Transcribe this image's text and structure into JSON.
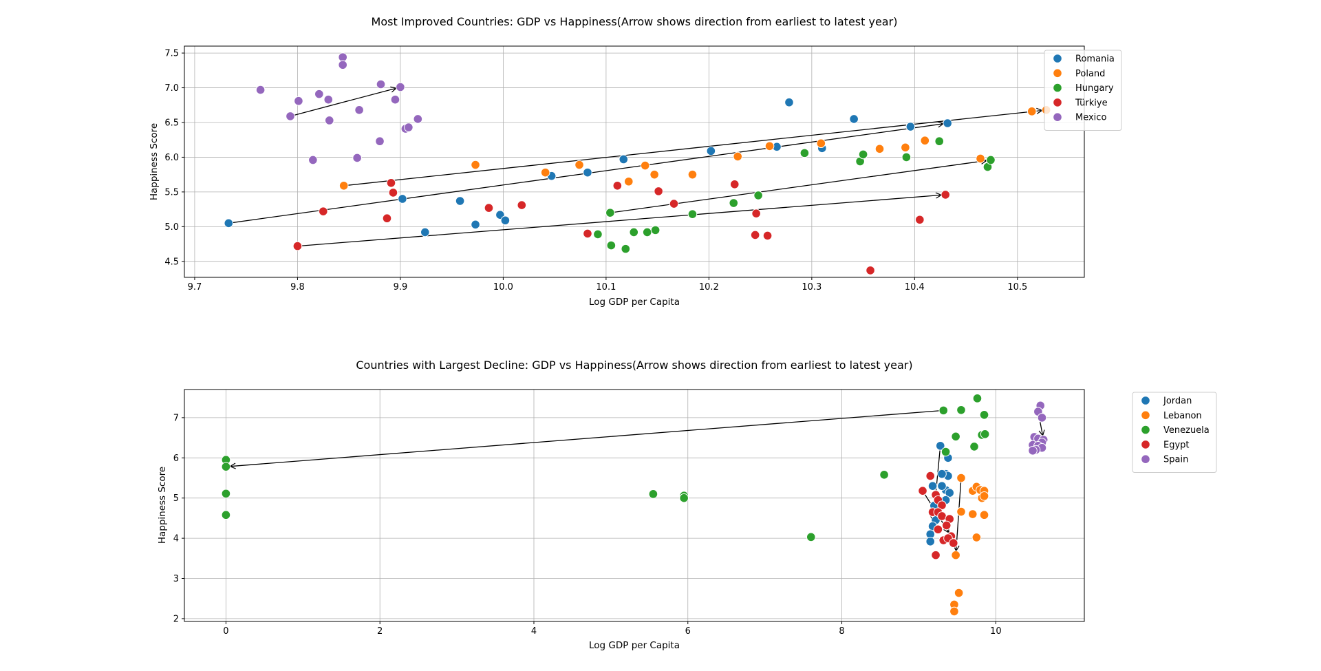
{
  "chart_data": [
    {
      "type": "scatter",
      "title": "Most Improved Countries: GDP vs Happiness(Arrow shows direction from earliest to latest year)",
      "xlabel": "Log GDP per Capita",
      "ylabel": "Happiness Score",
      "xlim": [
        9.69,
        10.565
      ],
      "ylim": [
        4.27,
        7.6
      ],
      "xticks": [
        9.7,
        9.8,
        9.9,
        10.0,
        10.1,
        10.2,
        10.3,
        10.4,
        10.5
      ],
      "xtick_labels": [
        "9.7",
        "9.8",
        "9.9",
        "10.0",
        "10.1",
        "10.2",
        "10.3",
        "10.4",
        "10.5"
      ],
      "yticks": [
        4.5,
        5.0,
        5.5,
        6.0,
        6.5,
        7.0,
        7.5
      ],
      "ytick_labels": [
        "4.5",
        "5.0",
        "5.5",
        "6.0",
        "6.5",
        "7.0",
        "7.5"
      ],
      "grid": true,
      "legend_position": "upper-right-outside",
      "series": [
        {
          "name": "Romania",
          "color": "#1f77b4",
          "points": [
            [
              9.733,
              5.05
            ],
            [
              9.902,
              5.4
            ],
            [
              9.924,
              4.92
            ],
            [
              9.958,
              5.37
            ],
            [
              9.973,
              5.03
            ],
            [
              9.997,
              5.17
            ],
            [
              10.002,
              5.09
            ],
            [
              10.047,
              5.73
            ],
            [
              10.082,
              5.78
            ],
            [
              10.117,
              5.97
            ],
            [
              10.202,
              6.09
            ],
            [
              10.266,
              6.15
            ],
            [
              10.278,
              6.79
            ],
            [
              10.31,
              6.13
            ],
            [
              10.341,
              6.55
            ],
            [
              10.396,
              6.44
            ],
            [
              10.432,
              6.49
            ]
          ],
          "arrow": {
            "from": [
              9.733,
              5.05
            ],
            "to": [
              10.432,
              6.49
            ]
          }
        },
        {
          "name": "Poland",
          "color": "#ff7f0e",
          "points": [
            [
              9.845,
              5.59
            ],
            [
              9.973,
              5.89
            ],
            [
              10.041,
              5.78
            ],
            [
              10.074,
              5.89
            ],
            [
              10.122,
              5.65
            ],
            [
              10.138,
              5.88
            ],
            [
              10.147,
              5.75
            ],
            [
              10.184,
              5.75
            ],
            [
              10.228,
              6.01
            ],
            [
              10.259,
              6.16
            ],
            [
              10.309,
              6.2
            ],
            [
              10.366,
              6.12
            ],
            [
              10.391,
              6.14
            ],
            [
              10.41,
              6.24
            ],
            [
              10.464,
              5.98
            ],
            [
              10.514,
              6.66
            ],
            [
              10.528,
              6.68
            ]
          ],
          "arrow": {
            "from": [
              9.845,
              5.59
            ],
            "to": [
              10.528,
              6.68
            ]
          }
        },
        {
          "name": "Hungary",
          "color": "#2ca02c",
          "points": [
            [
              10.104,
              5.2
            ],
            [
              10.092,
              4.89
            ],
            [
              10.105,
              4.73
            ],
            [
              10.119,
              4.68
            ],
            [
              10.127,
              4.92
            ],
            [
              10.14,
              4.92
            ],
            [
              10.148,
              4.95
            ],
            [
              10.184,
              5.18
            ],
            [
              10.224,
              5.34
            ],
            [
              10.248,
              5.45
            ],
            [
              10.293,
              6.06
            ],
            [
              10.347,
              5.94
            ],
            [
              10.35,
              6.04
            ],
            [
              10.392,
              6.0
            ],
            [
              10.424,
              6.23
            ],
            [
              10.471,
              5.86
            ],
            [
              10.474,
              5.96
            ]
          ],
          "arrow": {
            "from": [
              10.104,
              5.2
            ],
            "to": [
              10.474,
              5.96
            ]
          }
        },
        {
          "name": "Türkiye",
          "color": "#d62728",
          "points": [
            [
              9.8,
              4.72
            ],
            [
              9.825,
              5.22
            ],
            [
              9.887,
              5.12
            ],
            [
              9.891,
              5.63
            ],
            [
              9.893,
              5.49
            ],
            [
              9.986,
              5.27
            ],
            [
              10.018,
              5.31
            ],
            [
              10.082,
              4.9
            ],
            [
              10.111,
              5.59
            ],
            [
              10.151,
              5.51
            ],
            [
              10.166,
              5.33
            ],
            [
              10.225,
              5.61
            ],
            [
              10.245,
              4.88
            ],
            [
              10.246,
              5.19
            ],
            [
              10.257,
              4.87
            ],
            [
              10.357,
              4.37
            ],
            [
              10.405,
              5.1
            ],
            [
              10.43,
              5.46
            ]
          ],
          "arrow": {
            "from": [
              9.8,
              4.72
            ],
            "to": [
              10.43,
              5.46
            ]
          }
        },
        {
          "name": "Mexico",
          "color": "#9467bd",
          "points": [
            [
              9.764,
              6.97
            ],
            [
              9.793,
              6.59
            ],
            [
              9.801,
              6.81
            ],
            [
              9.815,
              5.96
            ],
            [
              9.821,
              6.91
            ],
            [
              9.83,
              6.83
            ],
            [
              9.831,
              6.53
            ],
            [
              9.844,
              7.44
            ],
            [
              9.844,
              7.33
            ],
            [
              9.858,
              5.99
            ],
            [
              9.86,
              6.68
            ],
            [
              9.88,
              6.23
            ],
            [
              9.881,
              7.05
            ],
            [
              9.895,
              6.83
            ],
            [
              9.9,
              7.01
            ],
            [
              9.905,
              6.41
            ],
            [
              9.908,
              6.43
            ],
            [
              9.917,
              6.55
            ]
          ],
          "arrow": {
            "from": [
              9.793,
              6.59
            ],
            "to": [
              9.9,
              7.01
            ]
          }
        }
      ]
    },
    {
      "type": "scatter",
      "title": "Countries with Largest Decline: GDP vs Happiness(Arrow shows direction from earliest to latest year)",
      "xlabel": "Log GDP per Capita",
      "ylabel": "Happiness Score",
      "xlim": [
        -0.54,
        11.15
      ],
      "ylim": [
        1.93,
        7.7
      ],
      "xticks": [
        0,
        2,
        4,
        6,
        8,
        10
      ],
      "xtick_labels": [
        "0",
        "2",
        "4",
        "6",
        "8",
        "10"
      ],
      "yticks": [
        2,
        3,
        4,
        5,
        6,
        7
      ],
      "ytick_labels": [
        "2",
        "3",
        "4",
        "5",
        "6",
        "7"
      ],
      "grid": true,
      "legend_position": "upper-right-outside",
      "series": [
        {
          "name": "Jordan",
          "color": "#1f77b4",
          "points": [
            [
              9.28,
              6.3
            ],
            [
              9.35,
              5.6
            ],
            [
              9.38,
              5.55
            ],
            [
              9.3,
              5.6
            ],
            [
              9.38,
              6.0
            ],
            [
              9.35,
              5.2
            ],
            [
              9.4,
              5.13
            ],
            [
              9.18,
              5.3
            ],
            [
              9.3,
              5.3
            ],
            [
              9.2,
              4.81
            ],
            [
              9.35,
              4.95
            ],
            [
              9.22,
              4.45
            ],
            [
              9.18,
              4.3
            ],
            [
              9.15,
              4.1
            ],
            [
              9.15,
              3.92
            ]
          ],
          "arrow": {
            "from": [
              9.28,
              6.3
            ],
            "to": [
              9.18,
              4.3
            ]
          }
        },
        {
          "name": "Lebanon",
          "color": "#ff7f0e",
          "points": [
            [
              9.55,
              5.5
            ],
            [
              9.7,
              5.18
            ],
            [
              9.75,
              5.28
            ],
            [
              9.8,
              5.2
            ],
            [
              9.85,
              5.18
            ],
            [
              9.82,
              5.0
            ],
            [
              9.85,
              5.05
            ],
            [
              9.55,
              4.66
            ],
            [
              9.7,
              4.6
            ],
            [
              9.85,
              4.58
            ],
            [
              9.75,
              4.02
            ],
            [
              9.48,
              3.58
            ],
            [
              9.52,
              2.64
            ],
            [
              9.46,
              2.35
            ],
            [
              9.46,
              2.18
            ]
          ],
          "arrow": {
            "from": [
              9.55,
              5.5
            ],
            "to": [
              9.48,
              3.58
            ]
          }
        },
        {
          "name": "Venezuela",
          "color": "#2ca02c",
          "points": [
            [
              9.32,
              7.18
            ],
            [
              9.55,
              7.19
            ],
            [
              9.76,
              7.48
            ],
            [
              9.85,
              7.07
            ],
            [
              9.48,
              6.53
            ],
            [
              9.82,
              6.57
            ],
            [
              9.86,
              6.59
            ],
            [
              9.72,
              6.28
            ],
            [
              9.35,
              6.15
            ],
            [
              8.55,
              5.58
            ],
            [
              7.6,
              4.03
            ],
            [
              5.55,
              5.1
            ],
            [
              5.95,
              5.06
            ],
            [
              5.95,
              5.0
            ],
            [
              0.0,
              5.95
            ],
            [
              0.0,
              5.78
            ],
            [
              0.0,
              5.11
            ],
            [
              0.0,
              4.58
            ]
          ],
          "arrow": {
            "from": [
              9.32,
              7.18
            ],
            "to": [
              0.0,
              5.78
            ]
          }
        },
        {
          "name": "Egypt",
          "color": "#d62728",
          "points": [
            [
              9.15,
              5.55
            ],
            [
              9.05,
              5.18
            ],
            [
              9.22,
              5.08
            ],
            [
              9.25,
              4.95
            ],
            [
              9.3,
              4.82
            ],
            [
              9.18,
              4.65
            ],
            [
              9.25,
              4.65
            ],
            [
              9.3,
              4.55
            ],
            [
              9.4,
              4.48
            ],
            [
              9.36,
              4.32
            ],
            [
              9.25,
              4.22
            ],
            [
              9.42,
              4.05
            ],
            [
              9.32,
              3.95
            ],
            [
              9.38,
              4.0
            ],
            [
              9.45,
              3.88
            ],
            [
              9.22,
              3.58
            ]
          ],
          "arrow": {
            "from": [
              9.05,
              5.18
            ],
            "to": [
              9.42,
              4.05
            ]
          }
        },
        {
          "name": "Spain",
          "color": "#9467bd",
          "points": [
            [
              10.58,
              7.3
            ],
            [
              10.55,
              7.15
            ],
            [
              10.6,
              7.0
            ],
            [
              10.5,
              6.52
            ],
            [
              10.55,
              6.48
            ],
            [
              10.62,
              6.45
            ],
            [
              10.6,
              6.38
            ],
            [
              10.48,
              6.32
            ],
            [
              10.55,
              6.3
            ],
            [
              10.6,
              6.25
            ],
            [
              10.52,
              6.2
            ],
            [
              10.48,
              6.18
            ]
          ],
          "arrow": {
            "from": [
              10.55,
              7.15
            ],
            "to": [
              10.62,
              6.45
            ]
          }
        }
      ]
    }
  ]
}
